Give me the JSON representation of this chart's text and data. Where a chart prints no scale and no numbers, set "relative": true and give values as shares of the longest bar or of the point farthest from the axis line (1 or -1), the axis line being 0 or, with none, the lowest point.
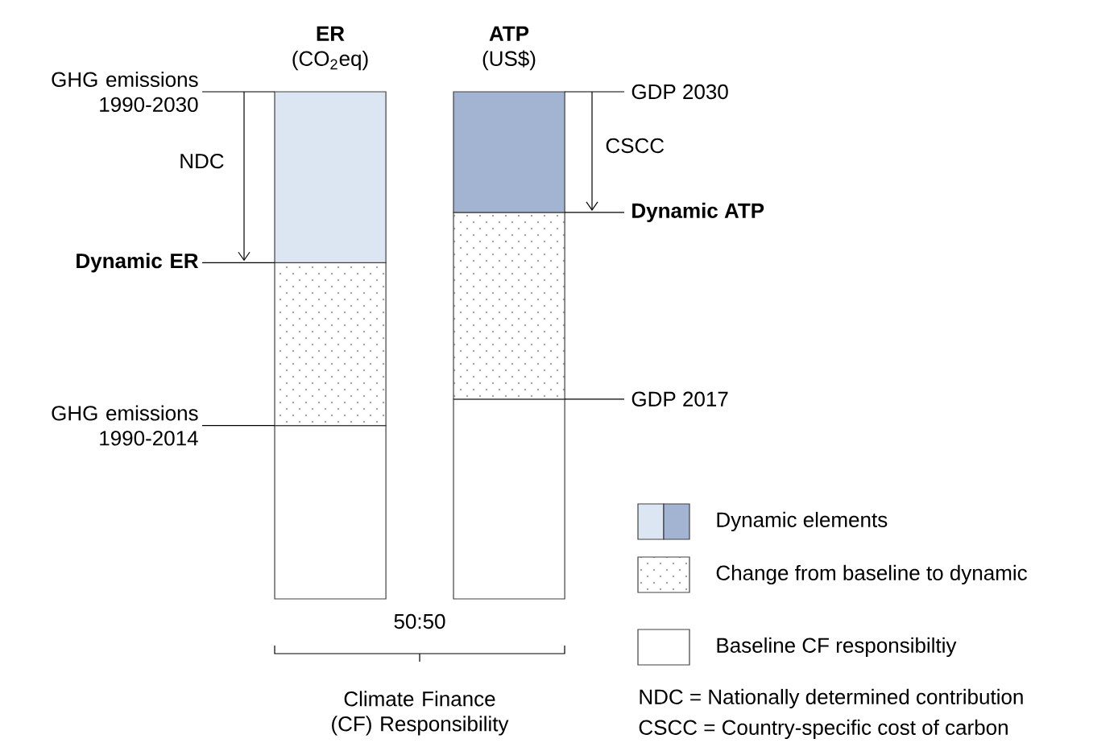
{
  "chart_data": {
    "type": "bar",
    "relative": true,
    "stacked": true,
    "legend": "bottom right",
    "categories": [
      "**ER** (CO$_{2}$eq)",
      "**ATP** (US$)"
    ],
    "series": [
      {
        "name": "Baseline CF responsibiltiy",
        "color": "#ffffff",
        "values": [
          0.342,
          0.394
        ]
      },
      {
        "name": "Change from baseline to dynamic",
        "color": "#ffffff",
        "values": [
          0.321,
          0.368
        ]
      },
      {
        "name": "Dynamic elements",
        "colors": [
          "#dce6f2",
          "#a2b4d2"
        ],
        "values": [
          0.337,
          0.238
        ]
      }
    ],
    "annotations": [
      "GHG emissions 1990-2030",
      "NDC",
      "Dynamic ER",
      "GHG emissions 1990-2014",
      "GDP 2030",
      "CSCC",
      "Dynamic ATP",
      "GDP 2017",
      "50:50",
      "Climate Finance (CF) Responsibility",
      "NDC = Nationally determined contribution",
      "CSCC = Country-specific cost of carbon"
    ]
  }
}
